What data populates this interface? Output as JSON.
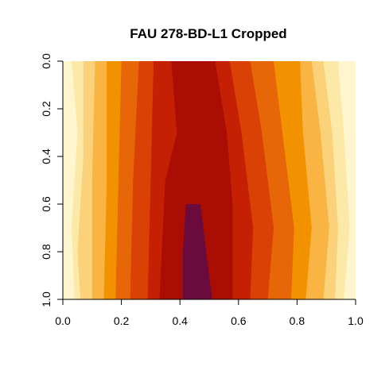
{
  "chart_data": {
    "type": "heatmap",
    "title": "FAU 278-BD-L1 Cropped",
    "xlabel": "",
    "ylabel": "",
    "xlim": [
      0,
      1
    ],
    "ylim": [
      1,
      0
    ],
    "x_ticks": [
      "0.0",
      "0.2",
      "0.4",
      "0.6",
      "0.8",
      "1.0"
    ],
    "y_ticks": [
      "0.0",
      "0.2",
      "0.4",
      "0.6",
      "0.8",
      "1.0"
    ],
    "y_tick_values": [
      0,
      0.2,
      0.4,
      0.6,
      0.8,
      1.0
    ],
    "x_tick_values": [
      0,
      0.2,
      0.4,
      0.6,
      0.8,
      1.0
    ],
    "palette": [
      "#ffffff",
      "#fff6cf",
      "#fde9a7",
      "#fbd17a",
      "#f9b443",
      "#f39200",
      "#e76607",
      "#d94105",
      "#c51f04",
      "#a90d04",
      "#6b0a3c"
    ],
    "grid": false,
    "legend": "none",
    "contour_bands": [
      {
        "level": 1,
        "left": [
          [
            0,
            0.02
          ],
          [
            0.5,
            0.0
          ],
          [
            1,
            0.01
          ]
        ],
        "right": [
          [
            0,
            0.97
          ],
          [
            0.5,
            0.99
          ],
          [
            1,
            0.99
          ]
        ]
      },
      {
        "level": 2,
        "left": [
          [
            0,
            0.03
          ],
          [
            0.3,
            0.05
          ],
          [
            0.7,
            0.03
          ],
          [
            1,
            0.04
          ]
        ],
        "right": [
          [
            0,
            0.94
          ],
          [
            0.3,
            0.96
          ],
          [
            0.7,
            0.98
          ],
          [
            1,
            0.96
          ]
        ]
      },
      {
        "level": 3,
        "left": [
          [
            0,
            0.07
          ],
          [
            0.4,
            0.07
          ],
          [
            0.8,
            0.05
          ],
          [
            1,
            0.06
          ]
        ],
        "right": [
          [
            0,
            0.89
          ],
          [
            0.3,
            0.92
          ],
          [
            0.7,
            0.94
          ],
          [
            1,
            0.93
          ]
        ]
      },
      {
        "level": 4,
        "left": [
          [
            0,
            0.11
          ],
          [
            0.5,
            0.1
          ],
          [
            1,
            0.1
          ]
        ],
        "right": [
          [
            0,
            0.85
          ],
          [
            0.3,
            0.88
          ],
          [
            0.7,
            0.91
          ],
          [
            1,
            0.89
          ]
        ]
      },
      {
        "level": 5,
        "left": [
          [
            0,
            0.15
          ],
          [
            0.5,
            0.15
          ],
          [
            1,
            0.14
          ]
        ],
        "right": [
          [
            0,
            0.81
          ],
          [
            0.3,
            0.82
          ],
          [
            0.7,
            0.85
          ],
          [
            1,
            0.83
          ]
        ]
      },
      {
        "level": 6,
        "left": [
          [
            0,
            0.2
          ],
          [
            0.5,
            0.19
          ],
          [
            1,
            0.18
          ]
        ],
        "right": [
          [
            0,
            0.72
          ],
          [
            0.3,
            0.75
          ],
          [
            0.7,
            0.79
          ],
          [
            1,
            0.78
          ]
        ]
      },
      {
        "level": 7,
        "left": [
          [
            0,
            0.26
          ],
          [
            0.5,
            0.24
          ],
          [
            1,
            0.23
          ]
        ],
        "right": [
          [
            0,
            0.64
          ],
          [
            0.3,
            0.68
          ],
          [
            0.7,
            0.72
          ],
          [
            1,
            0.7
          ]
        ]
      },
      {
        "level": 8,
        "left": [
          [
            0,
            0.31
          ],
          [
            0.5,
            0.3
          ],
          [
            1,
            0.29
          ]
        ],
        "right": [
          [
            0,
            0.57
          ],
          [
            0.3,
            0.61
          ],
          [
            0.7,
            0.65
          ],
          [
            1,
            0.64
          ]
        ]
      },
      {
        "level": 9,
        "left": [
          [
            0,
            0.37
          ],
          [
            0.3,
            0.39
          ],
          [
            0.5,
            0.35
          ],
          [
            1,
            0.33
          ]
        ],
        "right": [
          [
            0,
            0.52
          ],
          [
            0.3,
            0.56
          ],
          [
            0.6,
            0.58
          ],
          [
            1,
            0.58
          ]
        ]
      },
      {
        "level": 10,
        "left": [
          [
            0.6,
            0.42
          ],
          [
            0.8,
            0.41
          ],
          [
            1,
            0.41
          ]
        ],
        "right": [
          [
            0.6,
            0.47
          ],
          [
            0.8,
            0.49
          ],
          [
            1,
            0.51
          ]
        ]
      }
    ]
  }
}
